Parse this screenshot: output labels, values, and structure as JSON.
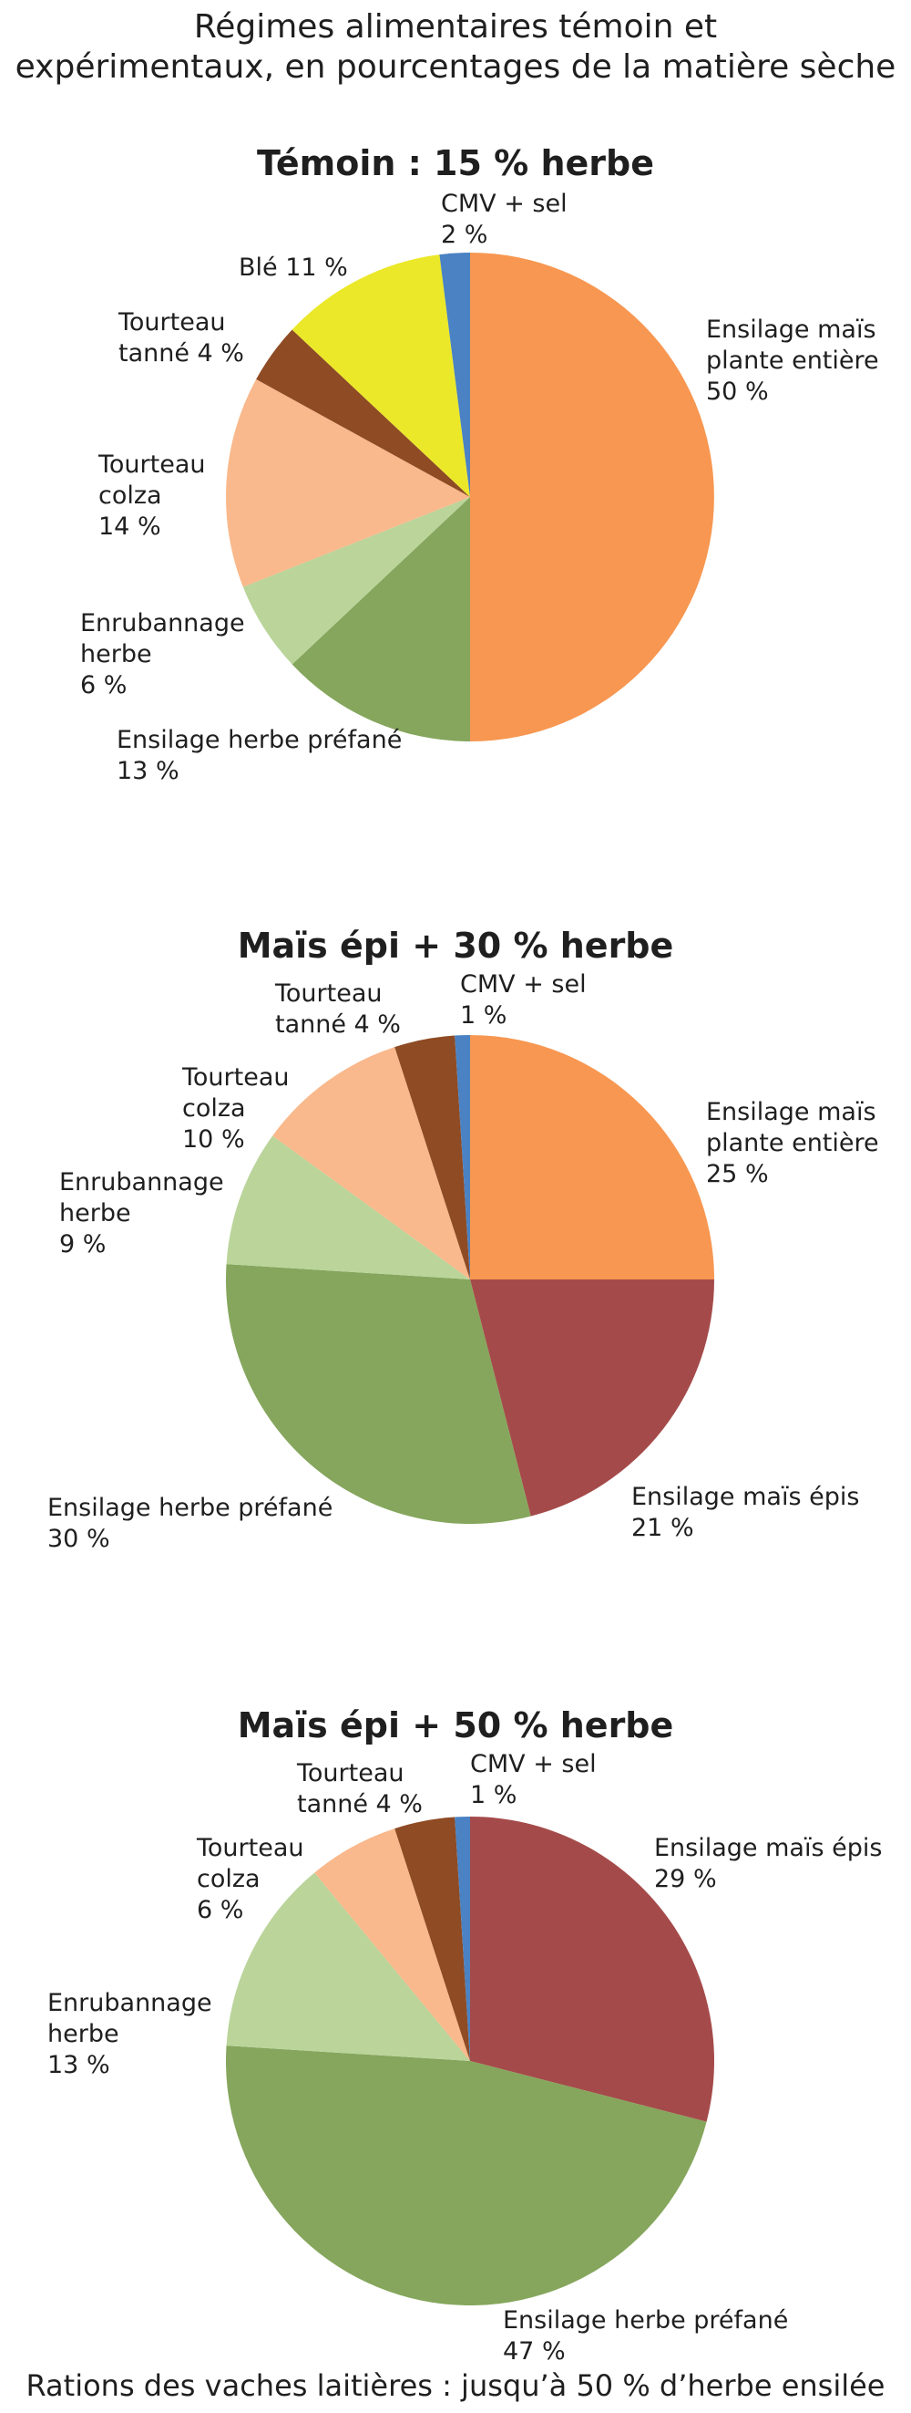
{
  "header": {
    "title_line1": "Régimes alimentaires témoin et",
    "title_line2": "expérimentaux, en pourcentages de la matière sèche"
  },
  "footer": {
    "caption": "Rations des vaches laitières : jusqu’à 50 % d’herbe ensilée"
  },
  "chart_data": [
    {
      "type": "pie",
      "title": "Témoin : 15 % herbe",
      "slices": [
        {
          "label": [
            "Ensilage maïs",
            "plante entière",
            "50 %"
          ],
          "value": 50,
          "color": "#f79751"
        },
        {
          "label": [
            "Ensilage herbe préfané",
            "13 %"
          ],
          "value": 13,
          "color": "#85a65c"
        },
        {
          "label": [
            "Enrubannage",
            "herbe",
            "6 %"
          ],
          "value": 6,
          "color": "#bad49a"
        },
        {
          "label": [
            "Tourteau",
            "colza",
            "14 %"
          ],
          "value": 14,
          "color": "#f9b98c"
        },
        {
          "label": [
            "Tourteau",
            "tanné 4 %"
          ],
          "value": 4,
          "color": "#8e4b24"
        },
        {
          "label": [
            "Blé 11 %"
          ],
          "value": 11,
          "color": "#ebe82a"
        },
        {
          "label": [
            "CMV + sel",
            "2 %"
          ],
          "value": 2,
          "color": "#4a82c3"
        }
      ]
    },
    {
      "type": "pie",
      "title": "Maïs épi + 30 % herbe",
      "slices": [
        {
          "label": [
            "Ensilage maïs",
            "plante entière",
            "25 %"
          ],
          "value": 25,
          "color": "#f79751"
        },
        {
          "label": [
            "Ensilage maïs épis",
            "21 %"
          ],
          "value": 21,
          "color": "#a54a4a"
        },
        {
          "label": [
            "Ensilage herbe préfané",
            "30 %"
          ],
          "value": 30,
          "color": "#85a65c"
        },
        {
          "label": [
            "Enrubannage",
            "herbe",
            "9 %"
          ],
          "value": 9,
          "color": "#bad49a"
        },
        {
          "label": [
            "Tourteau",
            "colza",
            "10 %"
          ],
          "value": 10,
          "color": "#f9b98c"
        },
        {
          "label": [
            "Tourteau",
            "tanné 4 %"
          ],
          "value": 4,
          "color": "#8e4b24"
        },
        {
          "label": [
            "CMV + sel",
            "1 %"
          ],
          "value": 1,
          "color": "#4a82c3"
        }
      ]
    },
    {
      "type": "pie",
      "title": "Maïs épi + 50 % herbe",
      "slices": [
        {
          "label": [
            "Ensilage maïs épis",
            "29 %"
          ],
          "value": 29,
          "color": "#a54a4a"
        },
        {
          "label": [
            "Ensilage herbe préfané",
            "47 %"
          ],
          "value": 47,
          "color": "#85a65c"
        },
        {
          "label": [
            "Enrubannage",
            "herbe",
            "13 %"
          ],
          "value": 13,
          "color": "#bad49a"
        },
        {
          "label": [
            "Tourteau",
            "colza",
            "6 %"
          ],
          "value": 6,
          "color": "#f9b98c"
        },
        {
          "label": [
            "Tourteau",
            "tanné 4 %"
          ],
          "value": 4,
          "color": "#8e4b24"
        },
        {
          "label": [
            "CMV + sel",
            "1 %"
          ],
          "value": 1,
          "color": "#4a82c3"
        }
      ]
    }
  ]
}
